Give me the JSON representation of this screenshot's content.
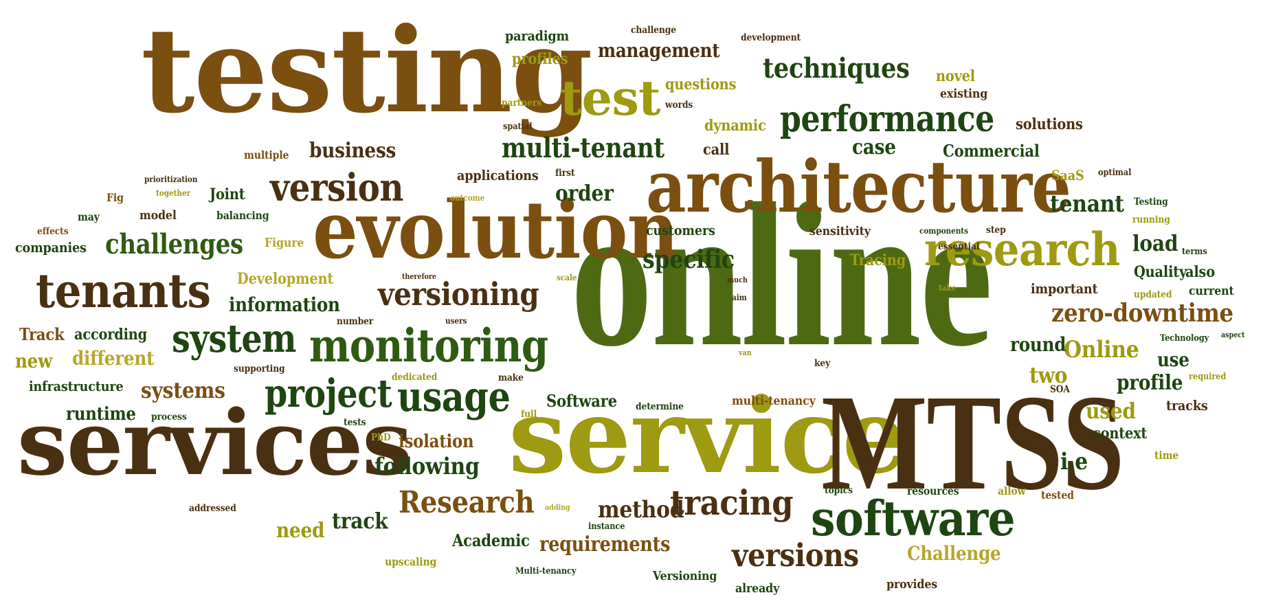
{
  "colors": {
    "brown": "#7a4f10",
    "dark_brown": "#4a3012",
    "olive": "#9e9a12",
    "light_olive": "#b4a82a",
    "dark_green": "#2f5a12",
    "deep_green": "#1f4512",
    "green": "#4d6a12",
    "amber": "#a5781a"
  },
  "words": [
    {
      "text": "testing",
      "color": "brown"
    },
    {
      "text": "online",
      "color": "green"
    },
    {
      "text": "service",
      "color": "olive"
    },
    {
      "text": "services",
      "color": "dark_brown"
    },
    {
      "text": "MTSS",
      "color": "dark_brown"
    },
    {
      "text": "architecture",
      "color": "brown"
    },
    {
      "text": "evolution",
      "color": "brown"
    },
    {
      "text": "software",
      "color": "deep_green"
    },
    {
      "text": "research",
      "color": "olive"
    },
    {
      "text": "monitoring",
      "color": "dark_green"
    },
    {
      "text": "tenants",
      "color": "dark_brown"
    },
    {
      "text": "test",
      "color": "olive"
    },
    {
      "text": "performance",
      "color": "deep_green"
    },
    {
      "text": "version",
      "color": "dark_brown"
    },
    {
      "text": "project",
      "color": "deep_green"
    },
    {
      "text": "system",
      "color": "deep_green"
    },
    {
      "text": "usage",
      "color": "deep_green"
    },
    {
      "text": "tracing",
      "color": "dark_brown"
    },
    {
      "text": "Research",
      "color": "brown"
    },
    {
      "text": "versions",
      "color": "dark_brown"
    },
    {
      "text": "multi-tenant",
      "color": "deep_green"
    },
    {
      "text": "versioning",
      "color": "dark_brown"
    },
    {
      "text": "zero-downtime",
      "color": "brown"
    },
    {
      "text": "challenges",
      "color": "dark_green"
    },
    {
      "text": "techniques",
      "color": "deep_green"
    },
    {
      "text": "following",
      "color": "deep_green"
    },
    {
      "text": "Online",
      "color": "olive"
    },
    {
      "text": "requirements",
      "color": "brown"
    },
    {
      "text": "specific",
      "color": "deep_green"
    },
    {
      "text": "management",
      "color": "dark_brown"
    },
    {
      "text": "business",
      "color": "dark_brown"
    },
    {
      "text": "tenant",
      "color": "deep_green"
    },
    {
      "text": "information",
      "color": "deep_green"
    },
    {
      "text": "method",
      "color": "dark_brown"
    },
    {
      "text": "systems",
      "color": "brown"
    },
    {
      "text": "order",
      "color": "deep_green"
    },
    {
      "text": "track",
      "color": "deep_green"
    },
    {
      "text": "different",
      "color": "light_olive"
    },
    {
      "text": "Challenge",
      "color": "light_olive"
    },
    {
      "text": "isolation",
      "color": "brown"
    },
    {
      "text": "round",
      "color": "deep_green"
    },
    {
      "text": "two",
      "color": "olive"
    },
    {
      "text": "case",
      "color": "deep_green"
    },
    {
      "text": "Academic",
      "color": "deep_green"
    },
    {
      "text": "need",
      "color": "olive"
    },
    {
      "text": "Commercial",
      "color": "deep_green"
    },
    {
      "text": "Software",
      "color": "deep_green"
    },
    {
      "text": "runtime",
      "color": "deep_green"
    },
    {
      "text": "profile",
      "color": "deep_green"
    },
    {
      "text": "used",
      "color": "olive"
    },
    {
      "text": "load",
      "color": "deep_green"
    },
    {
      "text": "i.e",
      "color": "deep_green"
    },
    {
      "text": "Development",
      "color": "light_olive"
    },
    {
      "text": "infrastructure",
      "color": "deep_green"
    },
    {
      "text": "new",
      "color": "olive"
    },
    {
      "text": "Track",
      "color": "brown"
    },
    {
      "text": "according",
      "color": "deep_green"
    },
    {
      "text": "companies",
      "color": "deep_green"
    },
    {
      "text": "customers",
      "color": "deep_green"
    },
    {
      "text": "dynamic",
      "color": "olive"
    },
    {
      "text": "questions",
      "color": "olive"
    },
    {
      "text": "Tracing",
      "color": "olive"
    },
    {
      "text": "Quality",
      "color": "deep_green"
    },
    {
      "text": "call",
      "color": "dark_brown"
    },
    {
      "text": "solutions",
      "color": "dark_brown"
    },
    {
      "text": "applications",
      "color": "dark_brown"
    },
    {
      "text": "profiles",
      "color": "olive"
    },
    {
      "text": "paradigm",
      "color": "deep_green"
    },
    {
      "text": "novel",
      "color": "olive"
    },
    {
      "text": "existing",
      "color": "dark_brown"
    },
    {
      "text": "important",
      "color": "dark_brown"
    },
    {
      "text": "use",
      "color": "deep_green"
    },
    {
      "text": "context",
      "color": "deep_green"
    },
    {
      "text": "also",
      "color": "deep_green"
    },
    {
      "text": "current",
      "color": "deep_green"
    },
    {
      "text": "sensitivity",
      "color": "dark_brown"
    },
    {
      "text": "tracks",
      "color": "dark_brown"
    },
    {
      "text": "Versioning",
      "color": "deep_green"
    },
    {
      "text": "provides",
      "color": "dark_brown"
    },
    {
      "text": "already",
      "color": "deep_green"
    },
    {
      "text": "upscaling",
      "color": "olive"
    },
    {
      "text": "Joint",
      "color": "deep_green"
    },
    {
      "text": "model",
      "color": "dark_brown"
    },
    {
      "text": "balancing",
      "color": "deep_green"
    },
    {
      "text": "Figure",
      "color": "light_olive"
    },
    {
      "text": "may",
      "color": "deep_green"
    },
    {
      "text": "Fig",
      "color": "brown"
    },
    {
      "text": "multiple",
      "color": "brown"
    },
    {
      "text": "SaaS",
      "color": "olive"
    },
    {
      "text": "Testing",
      "color": "deep_green"
    },
    {
      "text": "running",
      "color": "olive"
    },
    {
      "text": "terms",
      "color": "deep_green"
    },
    {
      "text": "time",
      "color": "olive"
    },
    {
      "text": "updated",
      "color": "olive"
    },
    {
      "text": "Technology",
      "color": "deep_green"
    },
    {
      "text": "aspect",
      "color": "deep_green"
    },
    {
      "text": "required",
      "color": "olive"
    },
    {
      "text": "SOA",
      "color": "dark_brown"
    },
    {
      "text": "tested",
      "color": "brown"
    },
    {
      "text": "allow",
      "color": "olive"
    },
    {
      "text": "resources",
      "color": "deep_green"
    },
    {
      "text": "topics",
      "color": "deep_green"
    },
    {
      "text": "adding",
      "color": "light_olive"
    },
    {
      "text": "instance",
      "color": "deep_green"
    },
    {
      "text": "Multi-tenancy",
      "color": "deep_green"
    },
    {
      "text": "multi-tenancy",
      "color": "brown"
    },
    {
      "text": "determine",
      "color": "deep_green"
    },
    {
      "text": "full",
      "color": "olive"
    },
    {
      "text": "make",
      "color": "dark_brown"
    },
    {
      "text": "dedicated",
      "color": "olive"
    },
    {
      "text": "PhD",
      "color": "olive"
    },
    {
      "text": "tests",
      "color": "deep_green"
    },
    {
      "text": "process",
      "color": "deep_green"
    },
    {
      "text": "supporting",
      "color": "dark_brown"
    },
    {
      "text": "number",
      "color": "dark_brown"
    },
    {
      "text": "users",
      "color": "dark_brown"
    },
    {
      "text": "therefore",
      "color": "dark_brown"
    },
    {
      "text": "scale",
      "color": "olive"
    },
    {
      "text": "much",
      "color": "dark_brown"
    },
    {
      "text": "aim",
      "color": "dark_brown"
    },
    {
      "text": "van",
      "color": "olive"
    },
    {
      "text": "key",
      "color": "dark_brown"
    },
    {
      "text": "take",
      "color": "olive"
    },
    {
      "text": "step",
      "color": "dark_brown"
    },
    {
      "text": "components",
      "color": "deep_green"
    },
    {
      "text": "essential",
      "color": "dark_brown"
    },
    {
      "text": "optimal",
      "color": "dark_brown"
    },
    {
      "text": "first",
      "color": "dark_brown"
    },
    {
      "text": "outcome",
      "color": "light_olive"
    },
    {
      "text": "together",
      "color": "olive"
    },
    {
      "text": "prioritization",
      "color": "dark_brown"
    },
    {
      "text": "effects",
      "color": "brown"
    },
    {
      "text": "spatial",
      "color": "dark_brown"
    },
    {
      "text": "partners",
      "color": "olive"
    },
    {
      "text": "words",
      "color": "dark_brown"
    },
    {
      "text": "challenge",
      "color": "dark_brown"
    },
    {
      "text": "development",
      "color": "dark_brown"
    },
    {
      "text": "addressed",
      "color": "dark_brown"
    }
  ]
}
